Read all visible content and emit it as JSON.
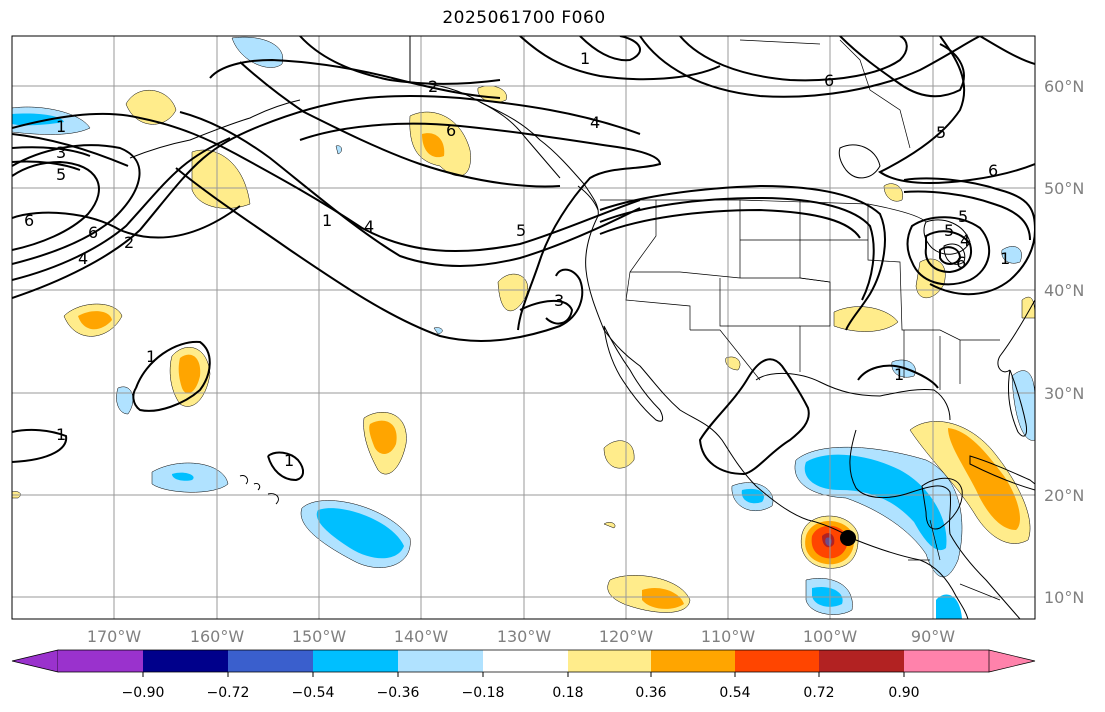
{
  "title": "2025061700 F060",
  "map": {
    "lat_labels": [
      "60°N",
      "50°N",
      "40°N",
      "30°N",
      "20°N",
      "10°N"
    ],
    "lon_labels": [
      "170°W",
      "160°W",
      "150°W",
      "140°W",
      "130°W",
      "120°W",
      "110°W",
      "100°W",
      "90°W"
    ],
    "contour_labels": [
      "1",
      "2",
      "6",
      "4",
      "5",
      "1",
      "3",
      "5",
      "6",
      "6",
      "4",
      "2",
      "1",
      "4",
      "5",
      "3",
      "6",
      "5",
      "6",
      "1",
      "1",
      "1",
      "1",
      "1",
      "4",
      "5",
      "6"
    ],
    "colors": {
      "neg_090": "#9a32cd",
      "neg_072": "#00008b",
      "neg_054": "#3a5fcd",
      "neg_036": "#00bfff",
      "neg_018": "#b0e2ff",
      "zero": "#ffffff",
      "pos_018": "#ffec8b",
      "pos_036": "#ffa500",
      "pos_054": "#ff4500",
      "pos_072": "#b22222",
      "pos_090": "#ff82ab"
    }
  },
  "colorbar": {
    "ticks": [
      "−0.90",
      "−0.72",
      "−0.54",
      "−0.36",
      "−0.18",
      "0.18",
      "0.36",
      "0.54",
      "0.72",
      "0.90"
    ]
  }
}
